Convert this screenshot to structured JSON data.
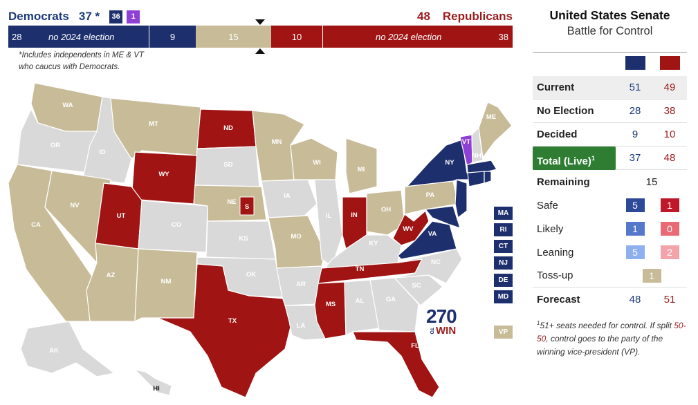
{
  "header": {
    "dem_label": "Democrats",
    "dem_total": "37 *",
    "dem_chip_1": "36",
    "dem_chip_2": "1",
    "rep_total": "48",
    "rep_label": "Republicans",
    "footnote": "*Includes independents in ME & VT who caucus with Democrats."
  },
  "seat_bar": {
    "dem_no_election": "28",
    "dem_no_election_label": "no 2024 election",
    "dem_decided": "9",
    "tossup": "15",
    "rep_decided": "10",
    "rep_no_election_label": "no 2024 election",
    "rep_no_election": "38"
  },
  "panel": {
    "title": "United States Senate",
    "subtitle": "Battle for Control",
    "rows": {
      "current": {
        "label": "Current",
        "dem": "51",
        "rep": "49"
      },
      "no_election": {
        "label": "No Election",
        "dem": "28",
        "rep": "38"
      },
      "decided": {
        "label": "Decided",
        "dem": "9",
        "rep": "10"
      },
      "total": {
        "label": "Total (Live)",
        "sup": "1",
        "dem": "37",
        "rep": "48"
      },
      "remaining": {
        "label": "Remaining",
        "value": "15"
      },
      "safe": {
        "label": "Safe",
        "dem": "5",
        "rep": "1"
      },
      "likely": {
        "label": "Likely",
        "dem": "1",
        "rep": "0"
      },
      "leaning": {
        "label": "Leaning",
        "dem": "5",
        "rep": "2"
      },
      "tossup": {
        "label": "Toss-up",
        "value": "1"
      },
      "forecast": {
        "label": "Forecast",
        "dem": "48",
        "rep": "51"
      }
    },
    "footnote_sup": "1",
    "footnote_a": "51+ seats needed for control. If split ",
    "footnote_split": "50-50",
    "footnote_b": ", control goes to the party of the winning vice-president (VP)."
  },
  "colors": {
    "dem": "#1e2f6e",
    "rep": "#a01414",
    "tossup": "#c8bb98",
    "no_race": "#d9d9d9",
    "independent": "#8e3fd6",
    "total_green": "#2e7d32",
    "safe_dem": "#2d4a9a",
    "likely_dem": "#5577cc",
    "lean_dem": "#8fb0ee",
    "safe_rep": "#c0182b",
    "likely_rep": "#e86a74",
    "lean_rep": "#f3a4aa"
  },
  "map": {
    "states": [
      "WA",
      "OR",
      "CA",
      "ID",
      "NV",
      "MT",
      "WY",
      "UT",
      "AZ",
      "CO",
      "NM",
      "ND",
      "SD",
      "NE",
      "KS",
      "OK",
      "TX",
      "MN",
      "IA",
      "MO",
      "AR",
      "LA",
      "WI",
      "IL",
      "MI",
      "IN",
      "OH",
      "KY",
      "TN",
      "MS",
      "AL",
      "GA",
      "FL",
      "SC",
      "NC",
      "VA",
      "WV",
      "PA",
      "NY",
      "VT",
      "NH",
      "ME",
      "MA",
      "CT",
      "NJ",
      "AK",
      "HI"
    ],
    "small_states": [
      "MA",
      "RI",
      "CT",
      "NJ",
      "DE",
      "MD"
    ],
    "ne_special": "S",
    "vp_label": "VP"
  },
  "logo": {
    "big": "270",
    "to": "TO",
    "win": "WIN"
  }
}
